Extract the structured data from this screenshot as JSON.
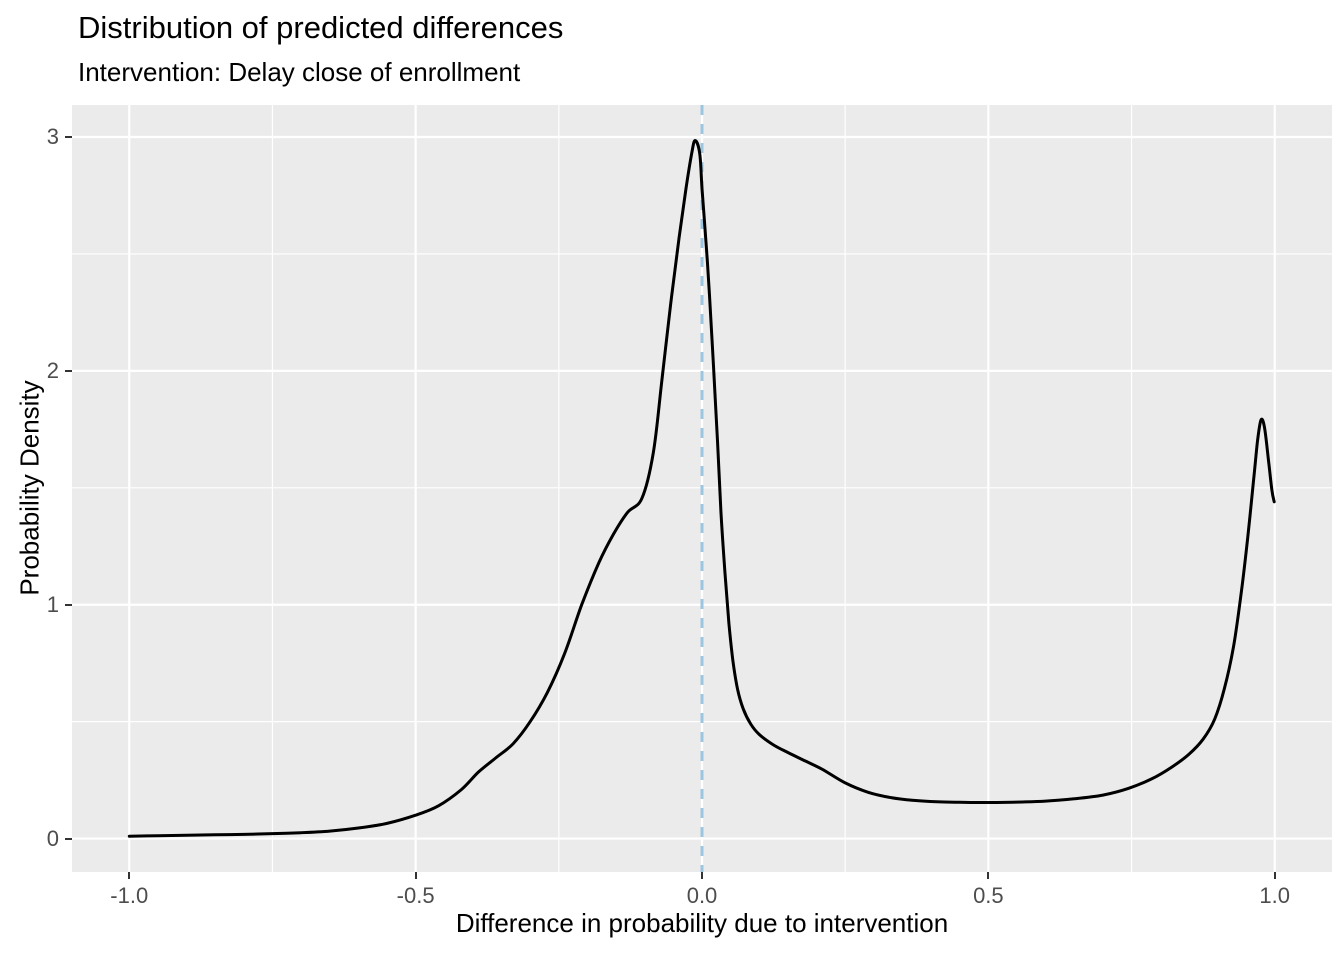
{
  "chart_data": {
    "type": "line",
    "title": "Distribution of predicted differences",
    "subtitle": "Intervention: Delay close of enrollment",
    "xlabel": "Difference in probability due to intervention",
    "ylabel": "Probability Density",
    "xlim": [
      -1.1,
      1.1
    ],
    "ylim": [
      -0.143,
      3.137
    ],
    "grid": "major and minor, white on grey panel",
    "legend": "none",
    "panel_background": "#EBEBEB",
    "gridline_color": "#FFFFFF",
    "axis_tick_color": "#333333",
    "axis_tick_label_color": "#4D4D4D",
    "x_axis": {
      "major_ticks": [
        -1.0,
        -0.5,
        0.0,
        0.5,
        1.0
      ],
      "major_labels": [
        "-1.0",
        "-0.5",
        "0.0",
        "0.5",
        "1.0"
      ],
      "minor_ticks": [
        -0.75,
        -0.25,
        0.25,
        0.75
      ]
    },
    "y_axis": {
      "major_ticks": [
        0,
        1,
        2,
        3
      ],
      "major_labels": [
        "0",
        "1",
        "2",
        "3"
      ],
      "minor_ticks": [
        0.5,
        1.5,
        2.5
      ]
    },
    "reference_line": {
      "orientation": "vertical",
      "x": 0.0,
      "color": "#9CC6E0",
      "style": "dashed"
    },
    "series": [
      {
        "name": "density of predicted differences",
        "type": "density",
        "color": "#000000",
        "points": [
          [
            -1.0,
            0.01
          ],
          [
            -0.95,
            0.012
          ],
          [
            -0.9,
            0.014
          ],
          [
            -0.85,
            0.016
          ],
          [
            -0.8,
            0.018
          ],
          [
            -0.75,
            0.021
          ],
          [
            -0.7,
            0.025
          ],
          [
            -0.65,
            0.032
          ],
          [
            -0.6,
            0.045
          ],
          [
            -0.55,
            0.065
          ],
          [
            -0.5,
            0.1
          ],
          [
            -0.46,
            0.14
          ],
          [
            -0.42,
            0.21
          ],
          [
            -0.39,
            0.285
          ],
          [
            -0.36,
            0.345
          ],
          [
            -0.33,
            0.405
          ],
          [
            -0.3,
            0.5
          ],
          [
            -0.27,
            0.625
          ],
          [
            -0.24,
            0.79
          ],
          [
            -0.21,
            1.0
          ],
          [
            -0.18,
            1.18
          ],
          [
            -0.155,
            1.3
          ],
          [
            -0.13,
            1.395
          ],
          [
            -0.105,
            1.455
          ],
          [
            -0.085,
            1.65
          ],
          [
            -0.07,
            1.96
          ],
          [
            -0.055,
            2.28
          ],
          [
            -0.04,
            2.57
          ],
          [
            -0.028,
            2.78
          ],
          [
            -0.018,
            2.93
          ],
          [
            -0.012,
            2.985
          ],
          [
            -0.004,
            2.93
          ],
          [
            0.0,
            2.78
          ],
          [
            0.007,
            2.55
          ],
          [
            0.013,
            2.33
          ],
          [
            0.02,
            2.02
          ],
          [
            0.027,
            1.7
          ],
          [
            0.033,
            1.4
          ],
          [
            0.04,
            1.14
          ],
          [
            0.047,
            0.92
          ],
          [
            0.054,
            0.76
          ],
          [
            0.062,
            0.64
          ],
          [
            0.072,
            0.555
          ],
          [
            0.085,
            0.49
          ],
          [
            0.1,
            0.445
          ],
          [
            0.125,
            0.4
          ],
          [
            0.15,
            0.368
          ],
          [
            0.18,
            0.332
          ],
          [
            0.21,
            0.296
          ],
          [
            0.25,
            0.238
          ],
          [
            0.29,
            0.198
          ],
          [
            0.33,
            0.175
          ],
          [
            0.37,
            0.163
          ],
          [
            0.41,
            0.157
          ],
          [
            0.45,
            0.155
          ],
          [
            0.5,
            0.154
          ],
          [
            0.55,
            0.156
          ],
          [
            0.6,
            0.16
          ],
          [
            0.65,
            0.17
          ],
          [
            0.7,
            0.186
          ],
          [
            0.745,
            0.215
          ],
          [
            0.785,
            0.255
          ],
          [
            0.82,
            0.305
          ],
          [
            0.85,
            0.36
          ],
          [
            0.875,
            0.425
          ],
          [
            0.895,
            0.51
          ],
          [
            0.912,
            0.64
          ],
          [
            0.928,
            0.82
          ],
          [
            0.942,
            1.06
          ],
          [
            0.953,
            1.29
          ],
          [
            0.963,
            1.53
          ],
          [
            0.97,
            1.7
          ],
          [
            0.976,
            1.79
          ],
          [
            0.982,
            1.76
          ],
          [
            0.989,
            1.62
          ],
          [
            0.995,
            1.49
          ],
          [
            0.999,
            1.44
          ]
        ]
      }
    ]
  }
}
